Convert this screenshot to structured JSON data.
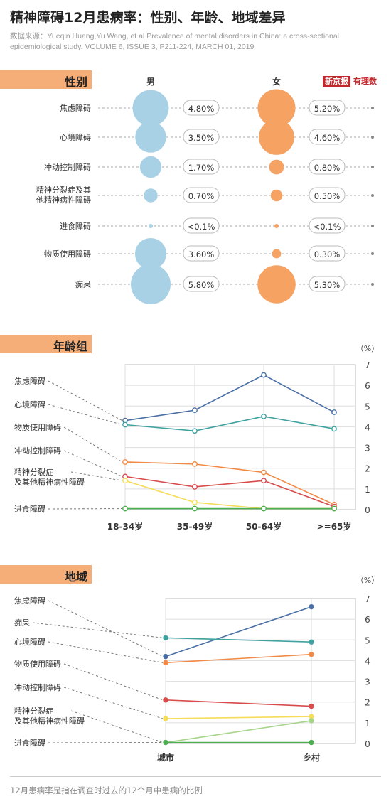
{
  "title": "精神障碍12月患病率：性别、年龄、地域差异",
  "source": "数据来源：Yueqin Huang,Yu Wang, et al.Prevalence of mental disorders in China: a cross-sectional epidemiological study. VOLUME 6, ISSUE 3, P211-224, MARCH 01, 2019",
  "logo": {
    "a": "新京报",
    "b": "有理数"
  },
  "footer": "12月患病率是指在调查时过去的12个月中患病的比例",
  "colors": {
    "male": "#a9d1e6",
    "female": "#f5a263",
    "banner": "#f6ae78"
  },
  "chart_data": [
    {
      "type": "scatter",
      "title": "性别",
      "columns": [
        "男",
        "女"
      ],
      "categories": [
        "焦虑障碍",
        "心境障碍",
        "冲动控制障碍",
        "精神分裂症及其他精神病性障碍",
        "进食障碍",
        "物质使用障碍",
        "痴呆"
      ],
      "series": [
        {
          "name": "男",
          "values": [
            4.8,
            3.5,
            1.7,
            0.7,
            0.05,
            3.6,
            5.8
          ],
          "labels": [
            "4.80%",
            "3.50%",
            "1.70%",
            "0.70%",
            "<0.1%",
            "3.60%",
            "5.80%"
          ]
        },
        {
          "name": "女",
          "values": [
            5.2,
            4.6,
            0.8,
            0.5,
            0.05,
            0.3,
            5.3
          ],
          "labels": [
            "5.20%",
            "4.60%",
            "0.80%",
            "0.50%",
            "<0.1%",
            "0.30%",
            "5.30%"
          ]
        }
      ]
    },
    {
      "type": "line",
      "title": "年龄组",
      "categories": [
        "18-34岁",
        "35-49岁",
        "50-64岁",
        ">=65岁"
      ],
      "ylabel": "（%）",
      "ylim": [
        0,
        7
      ],
      "yticks": [
        0,
        1,
        2,
        3,
        4,
        5,
        6,
        7
      ],
      "grid": true,
      "series": [
        {
          "name": "焦虑障碍",
          "color": "#4a6fa5",
          "values": [
            4.3,
            4.8,
            6.5,
            4.7
          ]
        },
        {
          "name": "心境障碍",
          "color": "#3fa2a0",
          "values": [
            4.1,
            3.8,
            4.5,
            3.9
          ]
        },
        {
          "name": "物质使用障碍",
          "color": "#f08a46",
          "values": [
            2.3,
            2.2,
            1.8,
            0.25
          ]
        },
        {
          "name": "冲动控制障碍",
          "color": "#d84b4b",
          "values": [
            1.6,
            1.1,
            1.4,
            0.15
          ]
        },
        {
          "name": "精神分裂症及其他精神病性障碍",
          "color": "#f5dc5a",
          "values": [
            1.4,
            0.35,
            0.05,
            0.05
          ]
        },
        {
          "name": "进食障碍",
          "color": "#4caf50",
          "values": [
            0.05,
            0.05,
            0.05,
            0.05
          ]
        }
      ]
    },
    {
      "type": "line",
      "title": "地域",
      "categories": [
        "城市",
        "乡村"
      ],
      "ylabel": "（%）",
      "ylim": [
        0,
        7
      ],
      "yticks": [
        0,
        1,
        2,
        3,
        4,
        5,
        6,
        7
      ],
      "grid": true,
      "series": [
        {
          "name": "焦虑障碍",
          "color": "#4a6fa5",
          "values": [
            4.2,
            6.6
          ]
        },
        {
          "name": "痴呆",
          "color": "#3fa2a0",
          "values": [
            5.1,
            4.9
          ]
        },
        {
          "name": "心境障碍",
          "color": "#f08a46",
          "values": [
            3.9,
            4.3
          ]
        },
        {
          "name": "物质使用障碍",
          "color": "#d84b4b",
          "values": [
            2.1,
            1.8
          ]
        },
        {
          "name": "冲动控制障碍",
          "color": "#f5dc5a",
          "values": [
            1.2,
            1.3
          ]
        },
        {
          "name": "精神分裂症及其他精神病性障碍",
          "color": "#a6d48a",
          "values": [
            0.05,
            1.1
          ]
        },
        {
          "name": "进食障碍",
          "color": "#4caf50",
          "values": [
            0.05,
            0.05
          ]
        }
      ]
    }
  ]
}
